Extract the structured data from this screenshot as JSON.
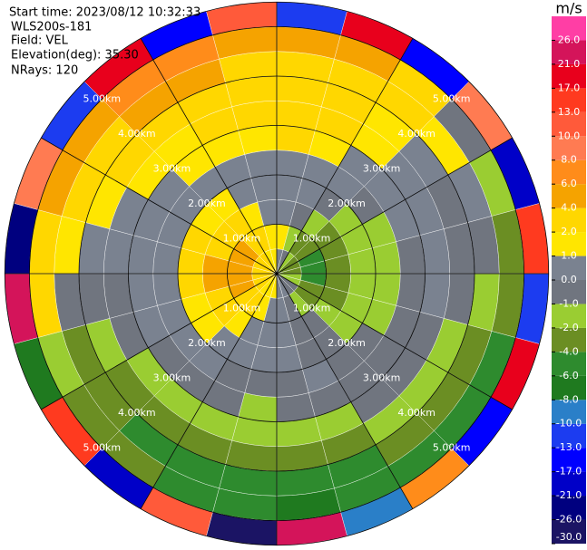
{
  "chart_data": {
    "type": "ppi",
    "start_time": "Start time: 2023/08/12 10:32:33",
    "instrument": "WLS200s-181",
    "field": "Field: VEL",
    "elevation": "Elevation(deg): 35.30",
    "nrays": "NRays: 120",
    "azimuths": [
      0,
      15,
      30,
      45,
      60,
      75,
      90,
      105,
      120,
      135,
      150,
      165,
      180,
      195,
      210,
      225,
      240,
      255,
      270,
      285,
      300,
      315,
      330,
      345
    ],
    "ranges": [
      0,
      0.5,
      1,
      1.5,
      2,
      2.5,
      3,
      3.5,
      4,
      4.5,
      5,
      5.5
    ],
    "rings": [
      {
        "value": 1,
        "label": "1.00km"
      },
      {
        "value": 2,
        "label": "2.00km"
      },
      {
        "value": 3,
        "label": "3.00km"
      },
      {
        "value": 4,
        "label": "4.00km"
      },
      {
        "value": 5,
        "label": "5.00km"
      }
    ],
    "values": [
      [
        0.5,
        1,
        0,
        0,
        0.5,
        2,
        2,
        3,
        2,
        5,
        -13
      ],
      [
        -1,
        -2,
        -1,
        0,
        0,
        1,
        2,
        3,
        2,
        4,
        17
      ],
      [
        -2,
        -3,
        -2,
        -1,
        0,
        0,
        1,
        1,
        3,
        2,
        -17
      ],
      [
        -3,
        -4,
        -3,
        -2,
        -1,
        0,
        0,
        0.5,
        1,
        -1,
        9
      ],
      [
        -3,
        -5,
        -3,
        -2,
        -1.5,
        0,
        0,
        -0.5,
        0,
        -2,
        -21
      ],
      [
        -3,
        -5,
        -4,
        -2,
        -1.5,
        -0.5,
        0,
        -1,
        -1,
        -3,
        14
      ],
      [
        -2,
        -5,
        -3,
        -2,
        -1.5,
        -0.5,
        0,
        -1,
        -2,
        -3,
        -11
      ],
      [
        -2,
        -4,
        -3,
        -2,
        -1.5,
        -1,
        -0.5,
        -1.5,
        -3,
        -5,
        19
      ],
      [
        -1,
        -3,
        -2,
        -1.5,
        -1,
        -0.5,
        -1,
        -2,
        -3,
        -5,
        -15
      ],
      [
        -1,
        -2,
        -1,
        -1,
        -0.5,
        -0.5,
        -1,
        -2,
        -4,
        -6,
        7
      ],
      [
        0,
        -1,
        -0.5,
        -0.5,
        0,
        -1,
        -1.5,
        -3,
        -5,
        -6,
        -9
      ],
      [
        0.5,
        0,
        0,
        0,
        -0.5,
        -1,
        -2,
        -4,
        -5,
        -7,
        23
      ],
      [
        1,
        0.5,
        0,
        0,
        -0.5,
        -1.5,
        -2,
        -4,
        -6,
        -5,
        -27
      ],
      [
        1,
        1,
        0.5,
        0,
        -0.5,
        -1,
        -2,
        -4,
        -6,
        -5,
        11
      ],
      [
        1.5,
        2,
        1,
        0.5,
        0,
        -1,
        -1.5,
        -3,
        -5,
        -4,
        -19
      ],
      [
        2,
        3,
        2,
        1,
        0,
        -0.5,
        -1.5,
        -3,
        -4,
        -3,
        15
      ],
      [
        2,
        4,
        3,
        1.5,
        0,
        0,
        -1,
        -2,
        -3,
        -2,
        -7
      ],
      [
        3,
        5,
        4,
        2,
        0.5,
        0,
        -0.5,
        -1,
        -1,
        2,
        25
      ],
      [
        3,
        5,
        4,
        2,
        0.5,
        0,
        0,
        0.5,
        1,
        3,
        -23
      ],
      [
        3,
        5,
        3,
        2,
        0.5,
        0,
        0.5,
        1.5,
        2,
        5,
        9
      ],
      [
        2,
        4,
        3,
        1.5,
        0,
        0.5,
        1,
        2.5,
        3,
        5,
        -12
      ],
      [
        2,
        3,
        2,
        1,
        0,
        1,
        1.5,
        3,
        4,
        7,
        18
      ],
      [
        1,
        2,
        1,
        0.5,
        0,
        1.5,
        2,
        3,
        5,
        6,
        -14
      ],
      [
        1,
        1.5,
        0.5,
        0,
        0.5,
        1.5,
        2,
        3,
        3,
        5,
        12
      ]
    ],
    "colorbar": {
      "unit": "m/s",
      "levels": [
        -30,
        -26,
        -21,
        -17,
        -13,
        -10,
        -8,
        -6,
        -4,
        -2,
        -1,
        0,
        1,
        2,
        4,
        6,
        8,
        10,
        13,
        17,
        21,
        26,
        30
      ],
      "colors": [
        "#1b1464",
        "#00007f",
        "#0000c8",
        "#0000ff",
        "#1c3cf0",
        "#2a7fc8",
        "#1f7a1f",
        "#2e8b2e",
        "#6b8e23",
        "#9acd32",
        "#70757f",
        "#7a8290",
        "#ffe600",
        "#ffd700",
        "#f5a300",
        "#ff8c1a",
        "#ff7b52",
        "#ff5a3a",
        "#ff3a1f",
        "#e8001c",
        "#d4145a",
        "#ff3ea5"
      ],
      "ticks": [
        {
          "value": 26,
          "label": "26.0"
        },
        {
          "value": 21,
          "label": "21.0"
        },
        {
          "value": 17,
          "label": "17.0"
        },
        {
          "value": 13,
          "label": "13.0"
        },
        {
          "value": 10,
          "label": "10.0"
        },
        {
          "value": 8,
          "label": "8.0"
        },
        {
          "value": 6,
          "label": "6.0"
        },
        {
          "value": 4,
          "label": "4.0"
        },
        {
          "value": 2,
          "label": "2.0"
        },
        {
          "value": 1,
          "label": "1.0"
        },
        {
          "value": 0,
          "label": "0.0"
        },
        {
          "value": -1,
          "label": "-1.0"
        },
        {
          "value": -2,
          "label": "-2.0"
        },
        {
          "value": -4,
          "label": "-4.0"
        },
        {
          "value": -6,
          "label": "-6.0"
        },
        {
          "value": -8,
          "label": "-8.0"
        },
        {
          "value": -10,
          "label": "-10.0"
        },
        {
          "value": -13,
          "label": "-13.0"
        },
        {
          "value": -17,
          "label": "-17.0"
        },
        {
          "value": -21,
          "label": "-21.0"
        },
        {
          "value": -26,
          "label": "-26.0"
        },
        {
          "value": -30,
          "label": "-30.0"
        }
      ]
    }
  }
}
